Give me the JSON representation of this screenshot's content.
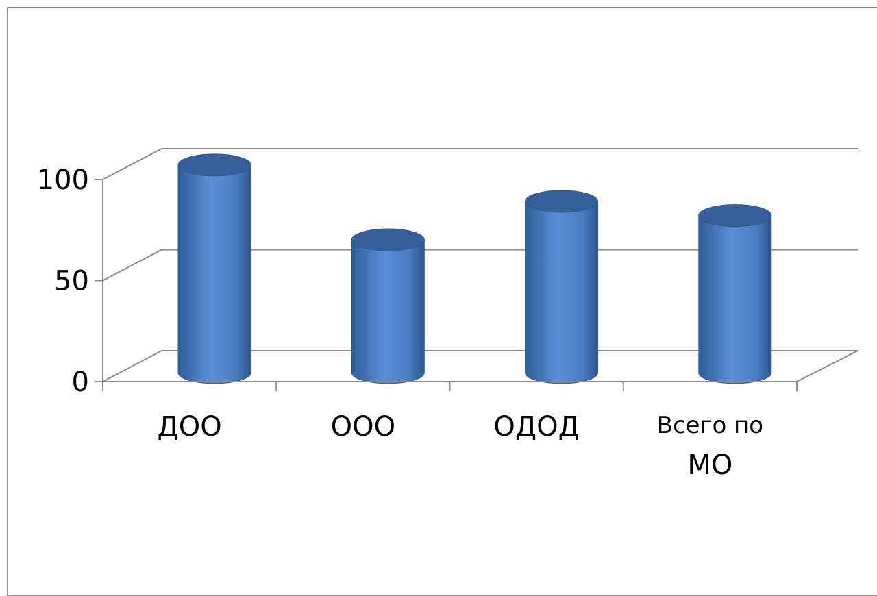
{
  "chart_data": {
    "type": "bar",
    "style": "3d-cylinder",
    "categories": [
      "ДОО",
      "ООО",
      "ОДОД",
      "Всего по МО"
    ],
    "values": [
      100,
      63,
      82,
      75
    ],
    "ylim": [
      0,
      100
    ],
    "yticks": [
      0,
      50,
      100
    ],
    "title": "",
    "xlabel": "",
    "ylabel": "",
    "grid": true,
    "legend": "none",
    "colors": {
      "bar_light": "#5b8fd6",
      "bar_mid": "#4a7cc0",
      "bar_dark": "#2f5d9a",
      "bar_top": "#355f99",
      "grid": "#8a8a8a"
    }
  }
}
